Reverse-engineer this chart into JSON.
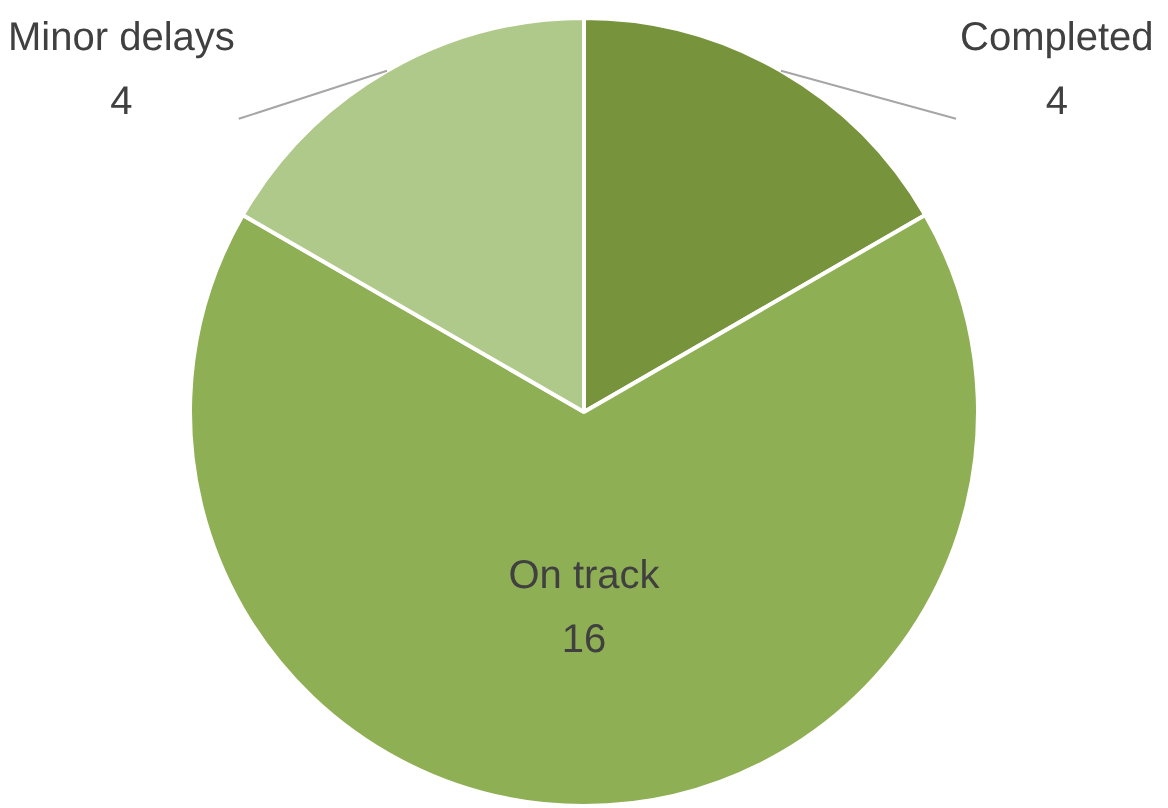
{
  "chart_data": {
    "type": "pie",
    "categories": [
      "Completed",
      "On track",
      "Minor delays"
    ],
    "values": [
      4,
      16,
      4
    ],
    "colors": [
      "#77933c",
      "#8faf54",
      "#afc98a"
    ],
    "data_labels": true,
    "legend": false
  }
}
